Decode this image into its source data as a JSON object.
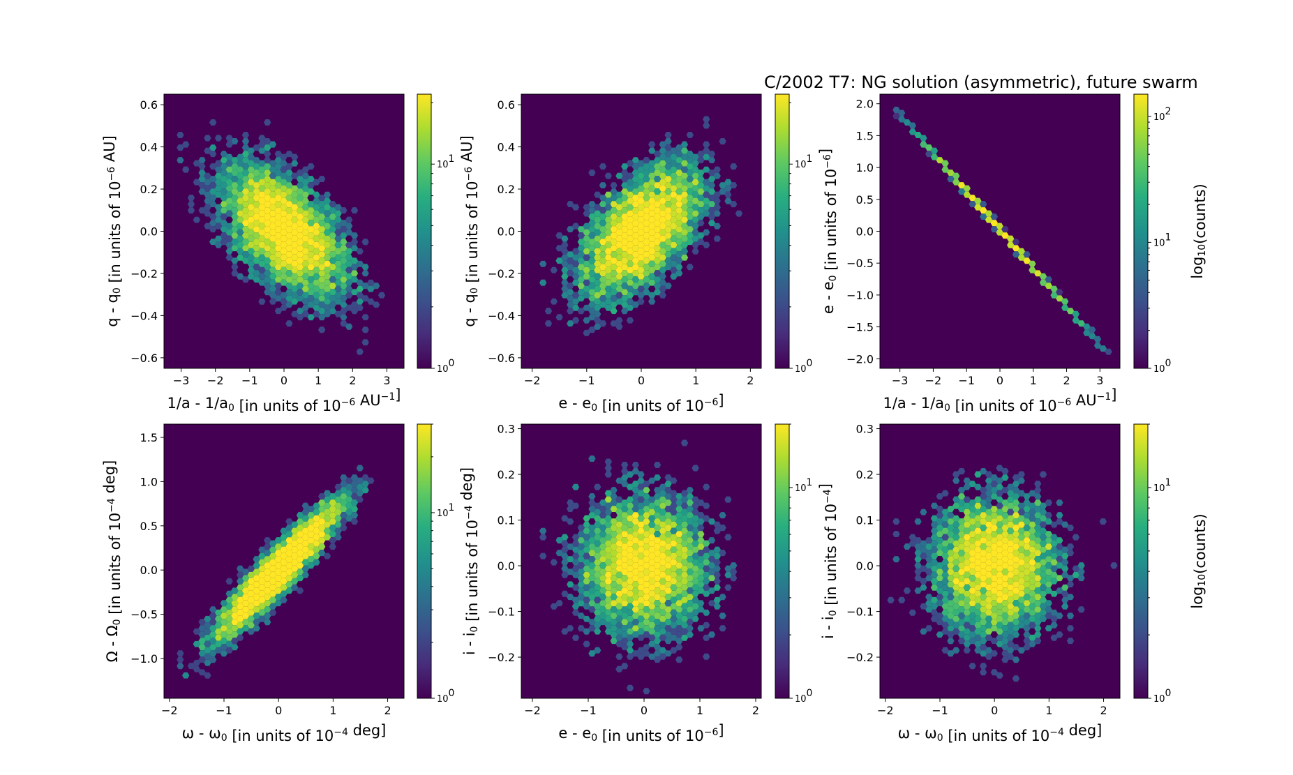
{
  "figure": {
    "title": "C/2002 T7:  NG solution (asymmetric), future swarm"
  },
  "chart_data": [
    {
      "type": "heatmap",
      "panel": "top-left",
      "xlabel": "1/a - 1/a₀ [in units of 10⁻⁶ AU⁻¹]",
      "ylabel": "q - q₀ [in units of 10⁻⁶ AU]",
      "xlim": [
        -3.5,
        3.5
      ],
      "ylim": [
        -0.65,
        0.65
      ],
      "xticks": [
        "−3",
        "−2",
        "−1",
        "0",
        "1",
        "2",
        "3"
      ],
      "yticks": [
        "−0.6",
        "−0.4",
        "−0.2",
        "0.0",
        "0.2",
        "0.4",
        "0.6"
      ],
      "colorbar": {
        "scale": "log",
        "range": [
          1,
          22
        ],
        "ticks": [
          "10⁰",
          "10¹"
        ],
        "label": ""
      },
      "cloud": {
        "x_mean": 0,
        "y_mean": 0,
        "x_sd": 1.0,
        "y_sd": 0.17,
        "corr": -0.55,
        "n": 6000
      }
    },
    {
      "type": "heatmap",
      "panel": "top-middle",
      "xlabel": "e - e₀ [in units of 10⁻⁶]",
      "ylabel": "q - q₀ [in units of 10⁻⁶ AU]",
      "xlim": [
        -2.2,
        2.2
      ],
      "ylim": [
        -0.65,
        0.65
      ],
      "xticks": [
        "−2",
        "−1",
        "0",
        "1",
        "2"
      ],
      "yticks": [
        "−0.6",
        "−0.4",
        "−0.2",
        "0.0",
        "0.2",
        "0.4",
        "0.6"
      ],
      "colorbar": {
        "scale": "log",
        "range": [
          1,
          22
        ],
        "ticks": [
          "10⁰",
          "10¹"
        ],
        "label": ""
      },
      "cloud": {
        "x_mean": 0,
        "y_mean": 0,
        "x_sd": 0.6,
        "y_sd": 0.17,
        "corr": 0.55,
        "n": 6000
      }
    },
    {
      "type": "heatmap",
      "panel": "top-right",
      "xlabel": "1/a - 1/a₀ [in units of 10⁻⁶ AU⁻¹]",
      "ylabel": "e - e₀ [in units of 10⁻⁶]",
      "xlim": [
        -3.6,
        3.6
      ],
      "ylim": [
        -2.15,
        2.15
      ],
      "xticks": [
        "−3",
        "−2",
        "−1",
        "0",
        "1",
        "2",
        "3"
      ],
      "yticks": [
        "−2.0",
        "−1.5",
        "−1.0",
        "−0.5",
        "0.0",
        "0.5",
        "1.0",
        "1.5",
        "2.0"
      ],
      "colorbar": {
        "scale": "log",
        "range": [
          1,
          150
        ],
        "ticks": [
          "10⁰",
          "10¹",
          "10²"
        ],
        "label": "log₁₀(counts)"
      },
      "line": {
        "x_start": -3.2,
        "y_start": 1.95,
        "x_end": 3.2,
        "y_end": -1.9
      }
    },
    {
      "type": "heatmap",
      "panel": "bottom-left",
      "xlabel": "ω - ω₀ [in units of 10⁻⁴ deg]",
      "ylabel": "Ω - Ω₀ [in units of 10⁻⁴ deg]",
      "xlim": [
        -2.1,
        2.3
      ],
      "ylim": [
        -1.45,
        1.65
      ],
      "xticks": [
        "−2",
        "−1",
        "0",
        "1",
        "2"
      ],
      "yticks": [
        "−1.0",
        "−0.5",
        "0.0",
        "0.5",
        "1.0",
        "1.5"
      ],
      "colorbar": {
        "scale": "log",
        "range": [
          1,
          30
        ],
        "ticks": [
          "10⁰",
          "10¹"
        ],
        "label": ""
      },
      "cloud": {
        "x_mean": 0,
        "y_mean": 0,
        "x_sd": 0.6,
        "y_sd": 0.4,
        "corr": 0.93,
        "n": 6000
      }
    },
    {
      "type": "heatmap",
      "panel": "bottom-middle",
      "xlabel": "e - e₀ [in units of 10⁻⁶]",
      "ylabel": "i - i₀ [in units of 10⁻⁴ deg]",
      "xlim": [
        -2.2,
        2.1
      ],
      "ylim": [
        -0.29,
        0.31
      ],
      "xticks": [
        "−2",
        "−1",
        "0",
        "1",
        "2"
      ],
      "yticks": [
        "−0.2",
        "−0.1",
        "0.0",
        "0.1",
        "0.2",
        "0.3"
      ],
      "colorbar": {
        "scale": "log",
        "range": [
          1,
          20
        ],
        "ticks": [
          "10⁰",
          "10¹"
        ],
        "label": ""
      },
      "cloud": {
        "x_mean": 0,
        "y_mean": 0,
        "x_sd": 0.6,
        "y_sd": 0.08,
        "corr": 0.0,
        "n": 6000
      }
    },
    {
      "type": "heatmap",
      "panel": "bottom-right",
      "xlabel": "ω - ω₀ [in units of 10⁻⁴ deg]",
      "ylabel": "i - i₀ [in units of 10⁻⁴]",
      "xlim": [
        -2.1,
        2.3
      ],
      "ylim": [
        -0.29,
        0.31
      ],
      "xticks": [
        "−2",
        "−1",
        "0",
        "1",
        "2"
      ],
      "yticks": [
        "−0.2",
        "−0.1",
        "0.0",
        "0.1",
        "0.2",
        "0.3"
      ],
      "colorbar": {
        "scale": "log",
        "range": [
          1,
          20
        ],
        "ticks": [
          "10⁰",
          "10¹"
        ],
        "label": "log₁₀(counts)"
      },
      "cloud": {
        "x_mean": 0,
        "y_mean": 0,
        "x_sd": 0.6,
        "y_sd": 0.08,
        "corr": 0.0,
        "n": 6000
      }
    }
  ]
}
